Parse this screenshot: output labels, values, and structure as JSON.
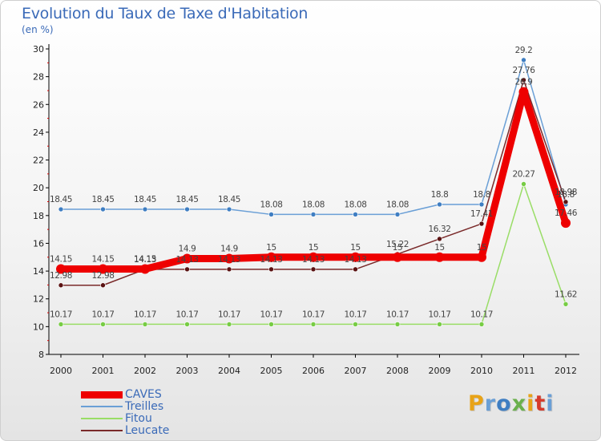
{
  "chart_title": "Evolution du Taux de Taxe d'Habitation",
  "chart_subtitle": "(en %)",
  "logo": {
    "text": "Proxiti",
    "letters": [
      "P",
      "r",
      "o",
      "x",
      "i",
      "t",
      "i"
    ],
    "colors": [
      "#e8a317",
      "#6a9fd6",
      "#3f7ec2",
      "#6ab04c",
      "#e8a317",
      "#d63b2b",
      "#6a9fd6"
    ]
  },
  "chart_data": {
    "type": "line",
    "title": "Evolution du Taux de Taxe d'Habitation",
    "ylabel": "(en %)",
    "xlabel": "",
    "categories": [
      "2000",
      "2001",
      "2002",
      "2003",
      "2004",
      "2005",
      "2006",
      "2007",
      "2008",
      "2009",
      "2010",
      "2011",
      "2012"
    ],
    "ylim": [
      8,
      30
    ],
    "yticks": [
      "8",
      "10",
      "12",
      "14",
      "16",
      "18",
      "20",
      "22",
      "24",
      "26",
      "28",
      "30"
    ],
    "grid": false,
    "legend_position": "bottom-left",
    "series": [
      {
        "name": "CAVES",
        "color": "#ee0000",
        "marker_color": "#ee0000",
        "values": [
          14.15,
          14.15,
          14.15,
          14.9,
          14.9,
          15,
          15,
          15,
          15,
          15,
          15,
          26.9,
          17.46
        ],
        "labels": [
          "14.15",
          "14.15",
          "14.15",
          "14.9",
          "14.9",
          "15",
          "15",
          "15",
          "15",
          "15",
          "15",
          "26.9",
          "17.46"
        ]
      },
      {
        "name": "Treilles",
        "color": "#6a9fd6",
        "marker_color": "#3f7ec2",
        "values": [
          18.45,
          18.45,
          18.45,
          18.45,
          18.45,
          18.08,
          18.08,
          18.08,
          18.08,
          18.8,
          18.8,
          29.2,
          18.8
        ],
        "labels": [
          "18.45",
          "18.45",
          "18.45",
          "18.45",
          "18.45",
          "18.08",
          "18.08",
          "18.08",
          "18.08",
          "18.8",
          "18.8",
          "29.2",
          "18.8"
        ]
      },
      {
        "name": "Fitou",
        "color": "#99dd66",
        "marker_color": "#77cc44",
        "values": [
          10.17,
          10.17,
          10.17,
          10.17,
          10.17,
          10.17,
          10.17,
          10.17,
          10.17,
          10.17,
          10.17,
          20.27,
          11.62
        ],
        "labels": [
          "10.17",
          "10.17",
          "10.17",
          "10.17",
          "10.17",
          "10.17",
          "10.17",
          "10.17",
          "10.17",
          "10.17",
          "10.17",
          "20.27",
          "11.62"
        ]
      },
      {
        "name": "Leucate",
        "color": "#7a2a2a",
        "marker_color": "#5a1212",
        "values": [
          12.98,
          12.98,
          14.13,
          14.13,
          14.13,
          14.13,
          14.13,
          14.13,
          15.22,
          16.32,
          17.41,
          27.76,
          18.98
        ],
        "labels": [
          "12.98",
          "12.98",
          "14.13",
          "14.13",
          "14.13",
          "14.13",
          "14.13",
          "14.13",
          "15.22",
          "16.32",
          "17.41",
          "27.76",
          "18.98"
        ]
      }
    ]
  }
}
